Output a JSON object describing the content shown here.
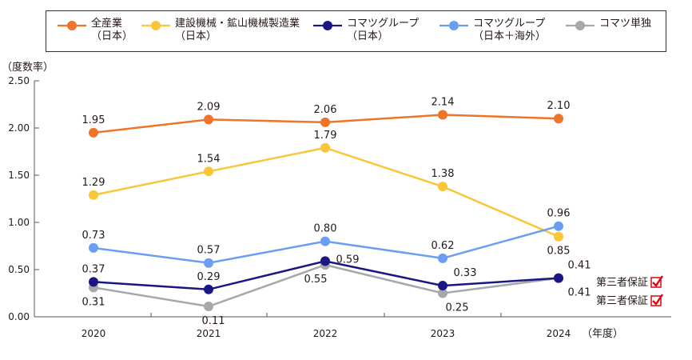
{
  "legend": [
    {
      "line1": "全産業",
      "line2": "（日本）",
      "color": "#ED7428"
    },
    {
      "line1": "建設機械・鉱山機械製造業",
      "line2": "（日本）",
      "color": "#F9C63A"
    },
    {
      "line1": "コマツグループ",
      "line2": "（日本）",
      "color": "#1B1683"
    },
    {
      "line1": "コマツグループ",
      "line2": "（日本＋海外）",
      "color": "#6A9EF2"
    },
    {
      "line1": "コマツ単独",
      "line2": "",
      "color": "#A6A8AB"
    }
  ],
  "certification": {
    "label": "第三者保証",
    "check_color": "#E60012",
    "icon": "check-icon"
  },
  "chart_data": {
    "type": "line",
    "ylabel": "（度数率）",
    "xlabel": "（年度）",
    "ylim": [
      0,
      2.5
    ],
    "yticks": [
      "0.00",
      "0.50",
      "1.00",
      "1.50",
      "2.00",
      "2.50"
    ],
    "categories": [
      "2020",
      "2021",
      "2022",
      "2023",
      "2024"
    ],
    "grid": false,
    "series": [
      {
        "name": "全産業（日本）",
        "color": "#ED7428",
        "values": [
          1.95,
          2.09,
          2.06,
          2.14,
          2.1
        ],
        "labels": [
          "1.95",
          "2.09",
          "2.06",
          "2.14",
          "2.10"
        ]
      },
      {
        "name": "建設機械・鉱山機械製造業（日本）",
        "color": "#F9C63A",
        "values": [
          1.29,
          1.54,
          1.79,
          1.38,
          0.85
        ],
        "labels": [
          "1.29",
          "1.54",
          "1.79",
          "1.38",
          "0.85"
        ]
      },
      {
        "name": "コマツグループ（日本＋海外）",
        "color": "#6A9EF2",
        "values": [
          0.73,
          0.57,
          0.8,
          0.62,
          0.96
        ],
        "labels": [
          "0.73",
          "0.57",
          "0.80",
          "0.62",
          "0.96"
        ]
      },
      {
        "name": "コマツ単独",
        "color": "#A6A8AB",
        "values": [
          0.31,
          0.11,
          0.55,
          0.25,
          0.41
        ],
        "labels": [
          "0.31",
          "0.11",
          "0.55",
          "0.25",
          "0.41"
        ]
      },
      {
        "name": "コマツグループ（日本）",
        "color": "#1B1683",
        "values": [
          0.37,
          0.29,
          0.59,
          0.33,
          0.41
        ],
        "labels": [
          "0.37",
          "0.29",
          "0.59",
          "0.33",
          "0.41"
        ]
      }
    ]
  }
}
